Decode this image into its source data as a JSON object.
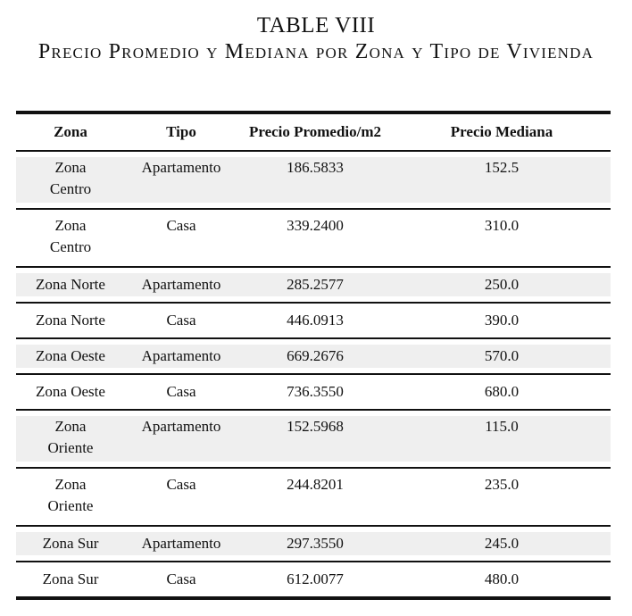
{
  "caption": {
    "number": "TABLE VIII",
    "title": "Precio Promedio y Mediana por Zona y Tipo de Vivienda"
  },
  "table": {
    "headers": [
      "Zona",
      "Tipo",
      "Precio Promedio/m2",
      "Precio Mediana"
    ],
    "rows": [
      {
        "zona_line1": "Zona",
        "zona_line2": "Centro",
        "tipo": "Apartamento",
        "promedio": "186.5833",
        "mediana": "152.5"
      },
      {
        "zona_line1": "Zona",
        "zona_line2": "Centro",
        "tipo": "Casa",
        "promedio": "339.2400",
        "mediana": "310.0"
      },
      {
        "zona": "Zona Norte",
        "tipo": "Apartamento",
        "promedio": "285.2577",
        "mediana": "250.0"
      },
      {
        "zona": "Zona Norte",
        "tipo": "Casa",
        "promedio": "446.0913",
        "mediana": "390.0"
      },
      {
        "zona": "Zona Oeste",
        "tipo": "Apartamento",
        "promedio": "669.2676",
        "mediana": "570.0"
      },
      {
        "zona": "Zona Oeste",
        "tipo": "Casa",
        "promedio": "736.3550",
        "mediana": "680.0"
      },
      {
        "zona_line1": "Zona",
        "zona_line2": "Oriente",
        "tipo": "Apartamento",
        "promedio": "152.5968",
        "mediana": "115.0"
      },
      {
        "zona_line1": "Zona",
        "zona_line2": "Oriente",
        "tipo": "Casa",
        "promedio": "244.8201",
        "mediana": "235.0"
      },
      {
        "zona": "Zona Sur",
        "tipo": "Apartamento",
        "promedio": "297.3550",
        "mediana": "245.0"
      },
      {
        "zona": "Zona Sur",
        "tipo": "Casa",
        "promedio": "612.0077",
        "mediana": "480.0"
      }
    ]
  }
}
